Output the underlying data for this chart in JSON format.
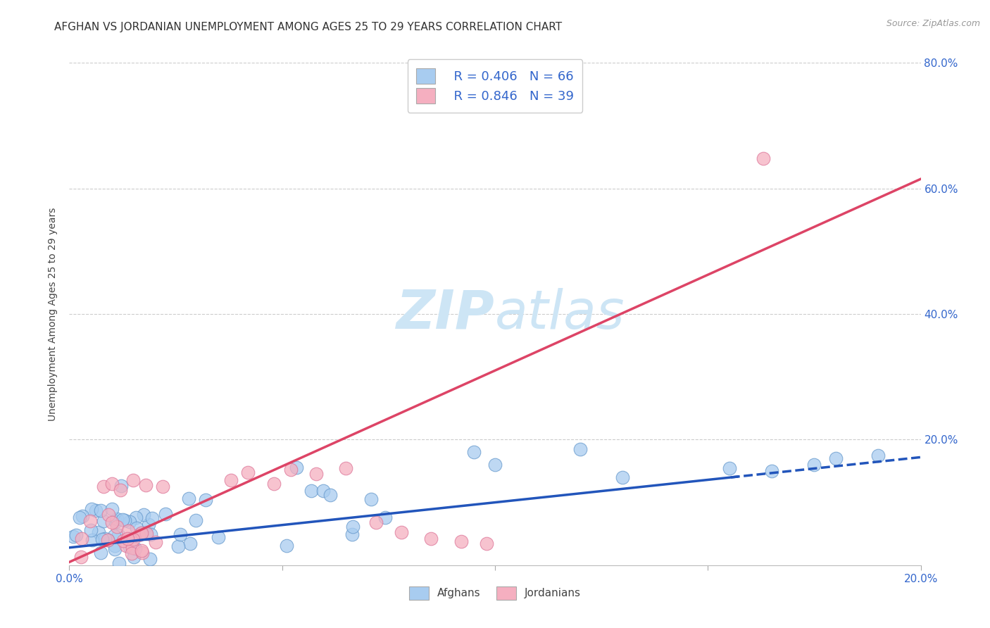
{
  "title": "AFGHAN VS JORDANIAN UNEMPLOYMENT AMONG AGES 25 TO 29 YEARS CORRELATION CHART",
  "source": "Source: ZipAtlas.com",
  "ylabel": "Unemployment Among Ages 25 to 29 years",
  "xlim": [
    0.0,
    0.2
  ],
  "ylim": [
    0.0,
    0.8
  ],
  "afghan_color": "#a8ccf0",
  "afghan_edge": "#6699cc",
  "jordanian_color": "#f5afc0",
  "jordanian_edge": "#dd7799",
  "trend_afghan_color": "#2255bb",
  "trend_jordanian_color": "#dd4466",
  "legend_text_color": "#3366cc",
  "watermark_color": "#cde5f5",
  "title_fontsize": 11,
  "axis_label_fontsize": 10,
  "tick_fontsize": 11,
  "tick_color": "#3366cc",
  "background_color": "#ffffff",
  "grid_color": "#cccccc",
  "legend_R_afghan": "R = 0.406",
  "legend_N_afghan": "N = 66",
  "legend_R_jordanian": "R = 0.846",
  "legend_N_jordanian": "N = 39",
  "afghan_trend_m": 0.72,
  "afghan_trend_b": 0.028,
  "jordanian_trend_m": 3.05,
  "jordanian_trend_b": 0.005
}
